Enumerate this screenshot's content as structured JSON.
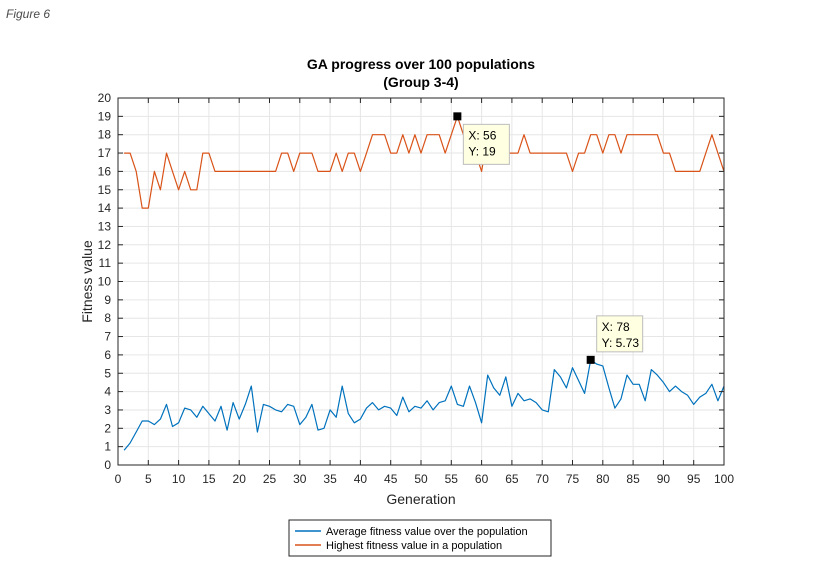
{
  "figure_caption": "Figure 6",
  "chart_data": {
    "type": "line",
    "title": "GA progress over 100 populations",
    "subtitle": "(Group 3-4)",
    "xlabel": "Generation",
    "ylabel": "Fitness value",
    "xlim": [
      0,
      100
    ],
    "ylim": [
      0,
      20
    ],
    "xticks": [
      0,
      5,
      10,
      15,
      20,
      25,
      30,
      35,
      40,
      45,
      50,
      55,
      60,
      65,
      70,
      75,
      80,
      85,
      90,
      95,
      100
    ],
    "yticks": [
      0,
      1,
      2,
      3,
      4,
      5,
      6,
      7,
      8,
      9,
      10,
      11,
      12,
      13,
      14,
      15,
      16,
      17,
      18,
      19,
      20
    ],
    "grid": true,
    "legend_position": "bottom-outside",
    "series": [
      {
        "name": "Average fitness value over the population",
        "color": "#0072BD",
        "x": [
          1,
          2,
          3,
          4,
          5,
          6,
          7,
          8,
          9,
          10,
          11,
          12,
          13,
          14,
          15,
          16,
          17,
          18,
          19,
          20,
          21,
          22,
          23,
          24,
          25,
          26,
          27,
          28,
          29,
          30,
          31,
          32,
          33,
          34,
          35,
          36,
          37,
          38,
          39,
          40,
          41,
          42,
          43,
          44,
          45,
          46,
          47,
          48,
          49,
          50,
          51,
          52,
          53,
          54,
          55,
          56,
          57,
          58,
          59,
          60,
          61,
          62,
          63,
          64,
          65,
          66,
          67,
          68,
          69,
          70,
          71,
          72,
          73,
          74,
          75,
          76,
          77,
          78,
          79,
          80,
          81,
          82,
          83,
          84,
          85,
          86,
          87,
          88,
          89,
          90,
          91,
          92,
          93,
          94,
          95,
          96,
          97,
          98,
          99,
          100
        ],
        "values": [
          0.8,
          1.2,
          1.8,
          2.4,
          2.4,
          2.2,
          2.5,
          3.3,
          2.1,
          2.3,
          3.1,
          3.0,
          2.6,
          3.2,
          2.8,
          2.4,
          3.2,
          1.9,
          3.4,
          2.5,
          3.3,
          4.3,
          1.8,
          3.3,
          3.2,
          3.0,
          2.9,
          3.3,
          3.2,
          2.2,
          2.6,
          3.3,
          1.9,
          2.0,
          3.0,
          2.6,
          4.3,
          2.8,
          2.3,
          2.5,
          3.1,
          3.4,
          3.0,
          3.2,
          3.1,
          2.7,
          3.7,
          2.9,
          3.2,
          3.1,
          3.5,
          3.0,
          3.4,
          3.5,
          4.3,
          3.3,
          3.2,
          4.3,
          3.4,
          2.3,
          4.9,
          4.2,
          3.8,
          4.8,
          3.2,
          3.9,
          3.5,
          3.6,
          3.4,
          3.0,
          2.9,
          5.2,
          4.8,
          4.2,
          5.3,
          4.6,
          3.9,
          5.73,
          5.5,
          5.4,
          4.2,
          3.1,
          3.6,
          4.9,
          4.4,
          4.4,
          3.5,
          5.2,
          4.9,
          4.5,
          4.0,
          4.3,
          4.0,
          3.8,
          3.3,
          3.7,
          3.9,
          4.4,
          3.5,
          4.3
        ]
      },
      {
        "name": "Highest fitness value in a population",
        "color": "#D95319",
        "x": [
          1,
          2,
          3,
          4,
          5,
          6,
          7,
          8,
          9,
          10,
          11,
          12,
          13,
          14,
          15,
          16,
          17,
          18,
          19,
          20,
          21,
          22,
          23,
          24,
          25,
          26,
          27,
          28,
          29,
          30,
          31,
          32,
          33,
          34,
          35,
          36,
          37,
          38,
          39,
          40,
          41,
          42,
          43,
          44,
          45,
          46,
          47,
          48,
          49,
          50,
          51,
          52,
          53,
          54,
          55,
          56,
          57,
          58,
          59,
          60,
          61,
          62,
          63,
          64,
          65,
          66,
          67,
          68,
          69,
          70,
          71,
          72,
          73,
          74,
          75,
          76,
          77,
          78,
          79,
          80,
          81,
          82,
          83,
          84,
          85,
          86,
          87,
          88,
          89,
          90,
          91,
          92,
          93,
          94,
          95,
          96,
          97,
          98,
          99,
          100
        ],
        "values": [
          17,
          17,
          16,
          14,
          14,
          16,
          15,
          17,
          16,
          15,
          16,
          15,
          15,
          17,
          17,
          16,
          16,
          16,
          16,
          16,
          16,
          16,
          16,
          16,
          16,
          16,
          17,
          17,
          16,
          17,
          17,
          17,
          16,
          16,
          16,
          17,
          16,
          17,
          17,
          16,
          17,
          18,
          18,
          18,
          17,
          17,
          18,
          17,
          18,
          17,
          18,
          18,
          18,
          17,
          18,
          19,
          18,
          18,
          17,
          16,
          18,
          17,
          17,
          17,
          17,
          17,
          18,
          17,
          17,
          17,
          17,
          17,
          17,
          17,
          16,
          17,
          17,
          18,
          18,
          17,
          18,
          18,
          17,
          18,
          18,
          18,
          18,
          18,
          18,
          17,
          17,
          16,
          16,
          16,
          16,
          16,
          17,
          18,
          17,
          16
        ]
      }
    ],
    "datatips": [
      {
        "series": 1,
        "x": 56,
        "y": 19,
        "x_label": "X: 56",
        "y_label": "Y: 19"
      },
      {
        "series": 0,
        "x": 78,
        "y": 5.73,
        "x_label": "X: 78",
        "y_label": "Y: 5.73"
      }
    ]
  }
}
